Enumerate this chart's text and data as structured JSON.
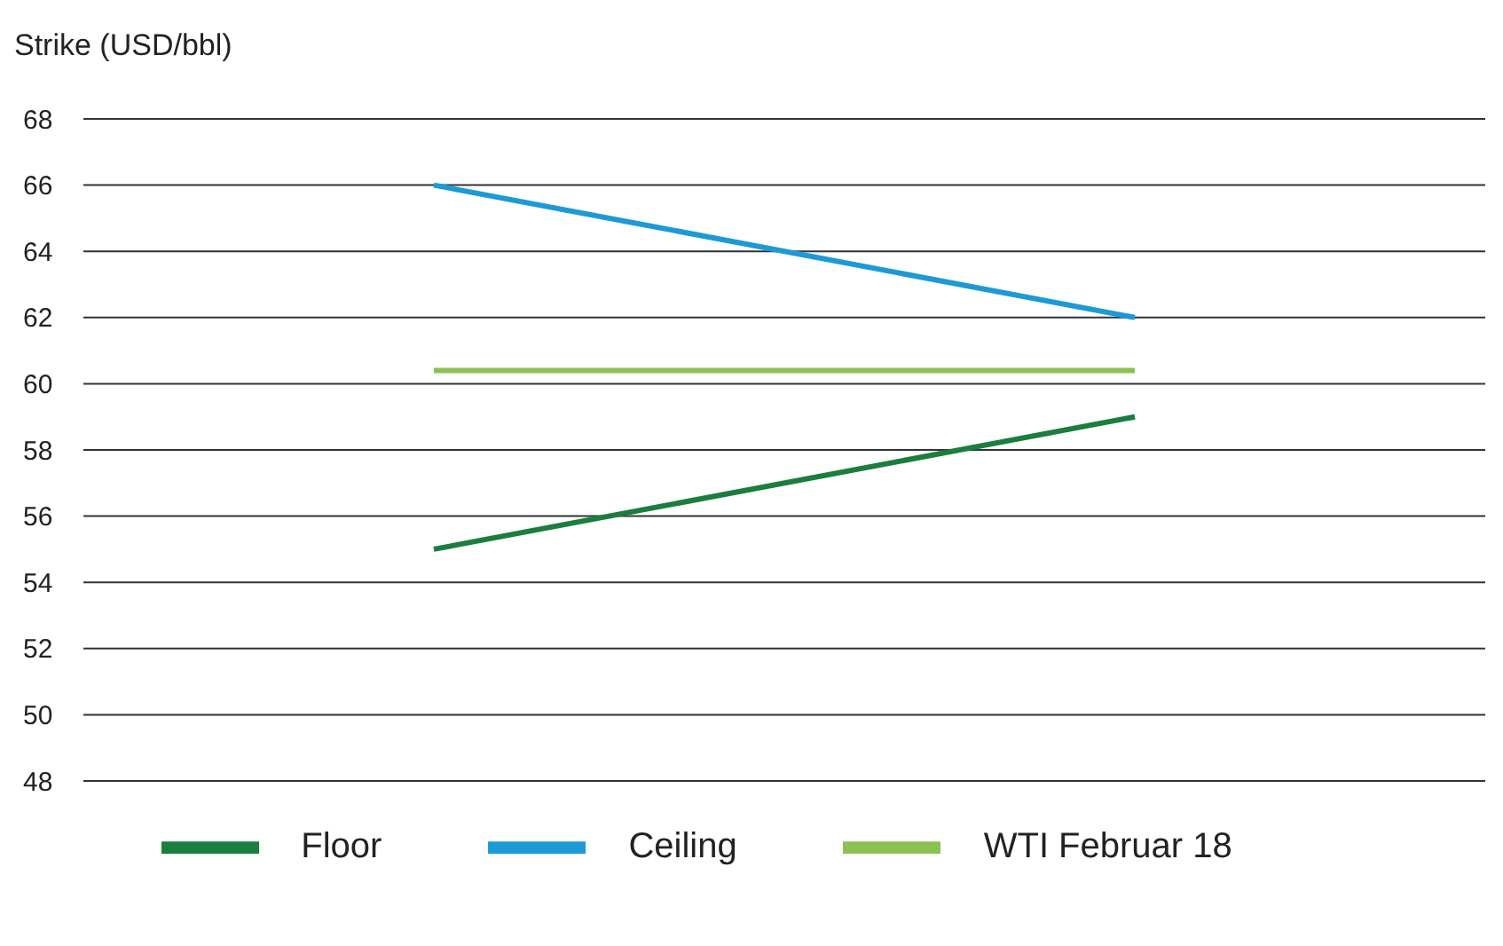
{
  "chart_data": {
    "type": "line",
    "ylabel": "Strike (USD/bbl)",
    "categories": [
      null,
      null
    ],
    "series": [
      {
        "name": "Floor",
        "color": "#1b7d3f",
        "values": [
          55,
          59
        ]
      },
      {
        "name": "Ceiling",
        "color": "#1d9ad6",
        "values": [
          66,
          62
        ]
      },
      {
        "name": "WTI Februar 18",
        "color": "#8cc152",
        "values": [
          60.4,
          60.4
        ]
      }
    ],
    "ylim": [
      48,
      68
    ],
    "yticks": [
      48,
      50,
      52,
      54,
      56,
      58,
      60,
      62,
      64,
      66,
      68
    ],
    "grid": "y",
    "legend": "bottom",
    "marker": "none",
    "line_style": "solid",
    "tick_labels": "y"
  }
}
